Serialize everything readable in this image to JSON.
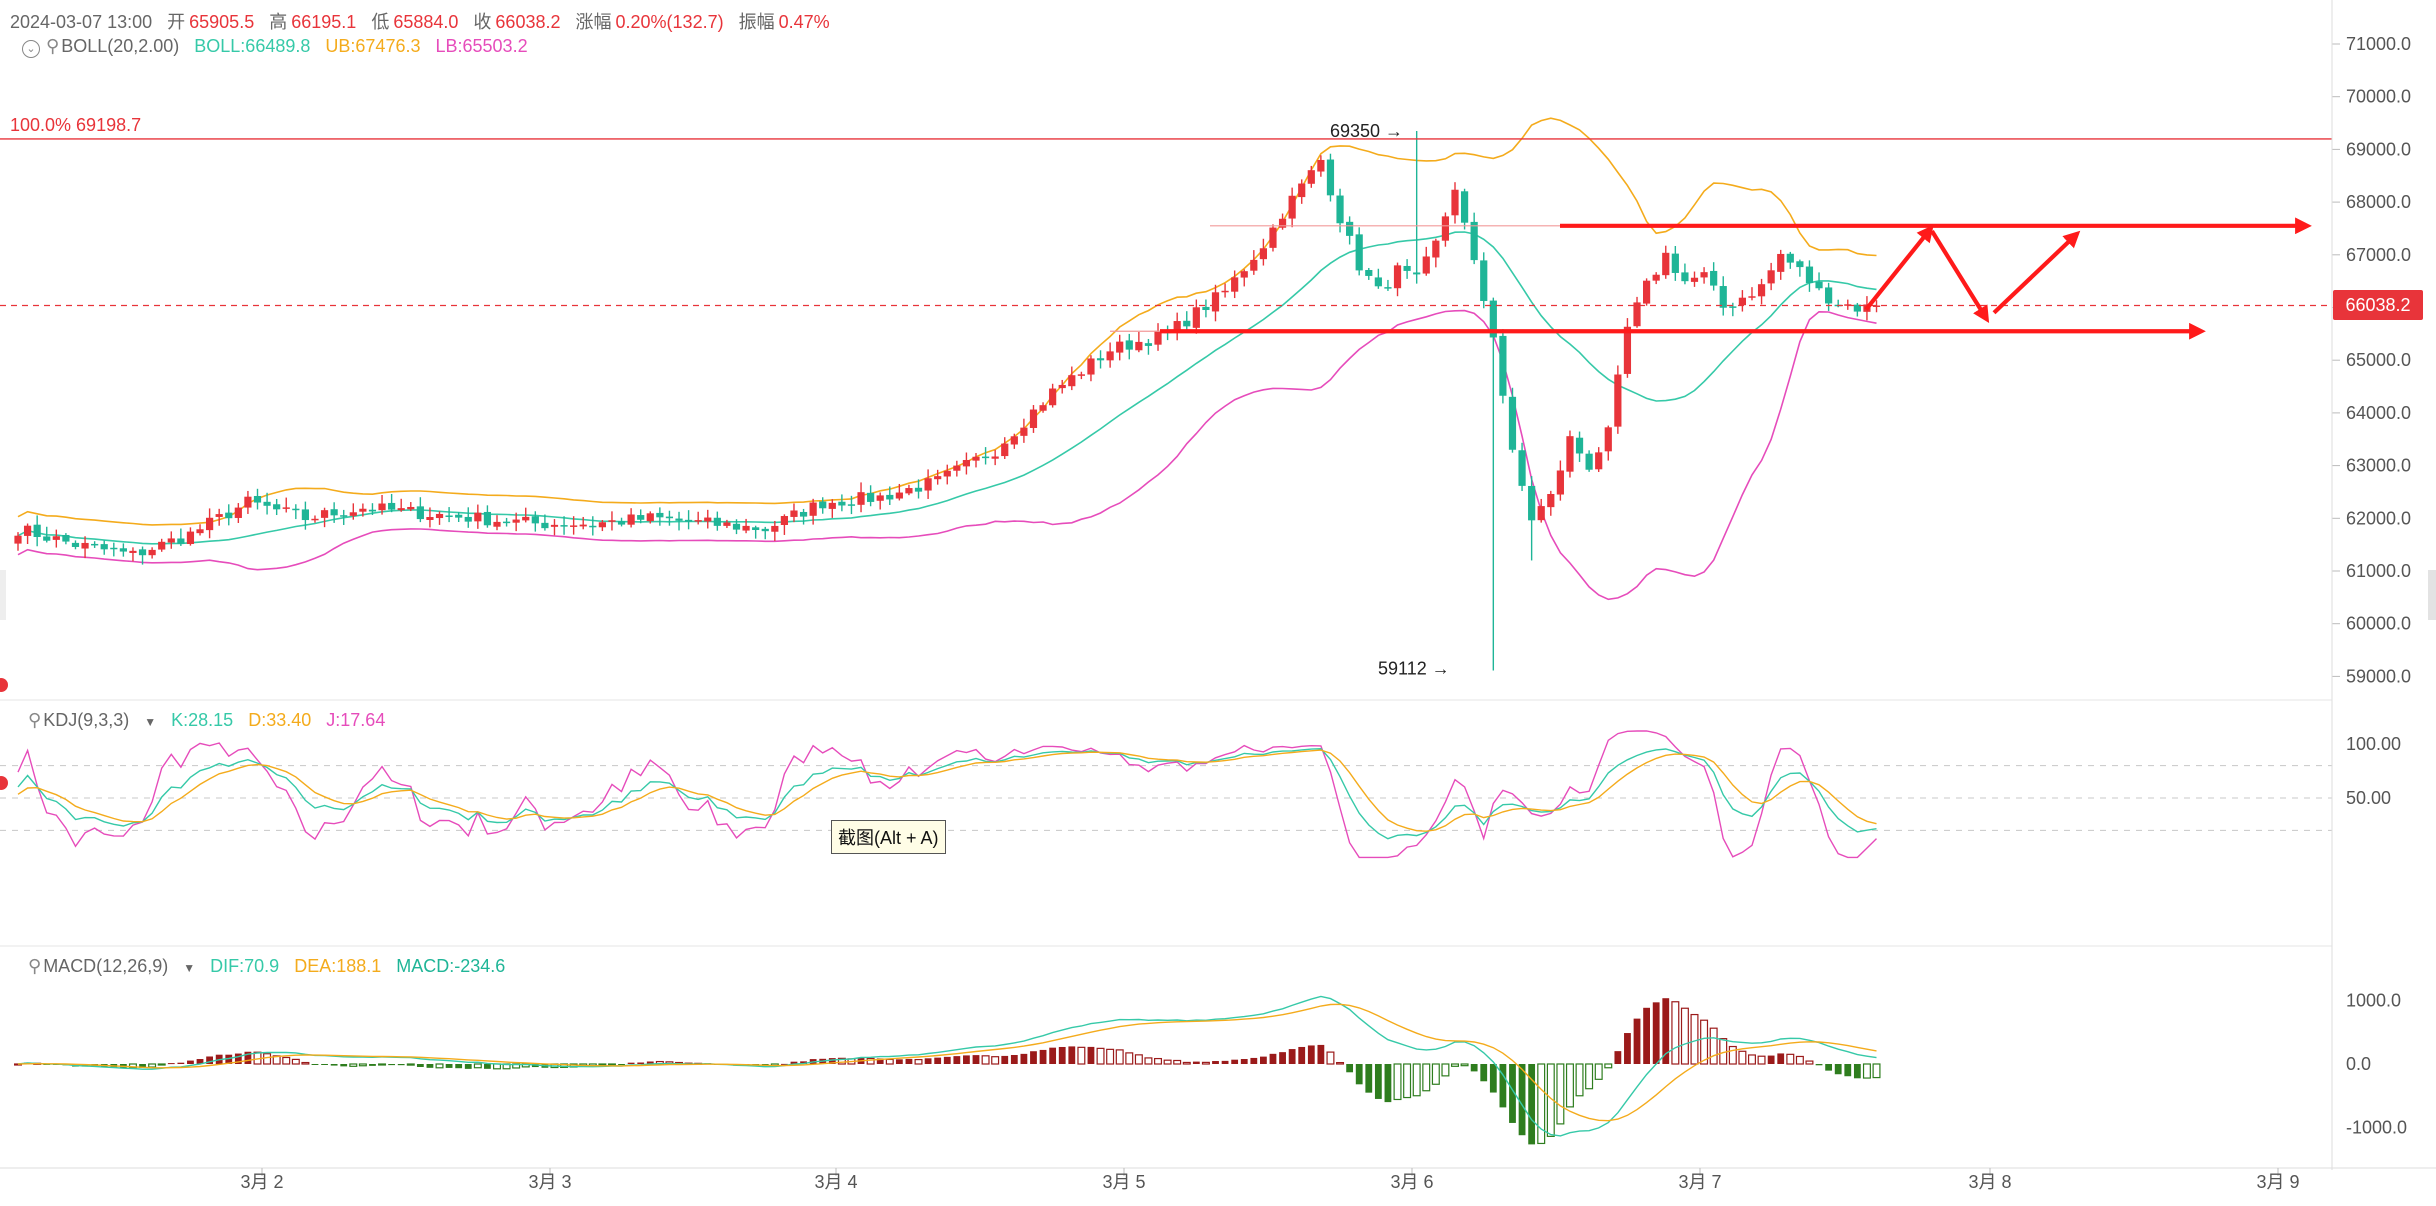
{
  "header": {
    "datetime": "2024-03-07 13:00",
    "open_label": "开",
    "open": "65905.5",
    "high_label": "高",
    "high": "66195.1",
    "low_label": "低",
    "low": "65884.0",
    "close_label": "收",
    "close": "66038.2",
    "change_label": "涨幅",
    "change": "0.20%(132.7)",
    "amp_label": "振幅",
    "amp": "0.47%"
  },
  "boll": {
    "label": "BOLL(20,2.00)",
    "mid": "BOLL:66489.8",
    "ub": "UB:67476.3",
    "lb": "LB:65503.2"
  },
  "kdj": {
    "label": "KDJ(9,3,3)",
    "k": "K:28.15",
    "d": "D:33.40",
    "j": "J:17.64"
  },
  "macd": {
    "label": "MACD(12,26,9)",
    "dif": "DIF:70.9",
    "dea": "DEA:188.1",
    "hist": "MACD:-234.6"
  },
  "fib_label": "100.0% 69198.7",
  "high_marker": "69350",
  "low_marker": "59112",
  "current_price": "66038.2",
  "tooltip": "截图(Alt + A)",
  "colors": {
    "up": "#e8343a",
    "down": "#1fb597",
    "mid": "#36c9a8",
    "ub": "#f4ab1c",
    "lb": "#e64cbb",
    "k": "#36c9a8",
    "d": "#f4ab1c",
    "j": "#e64cbb",
    "hist_pos": "#9b1a1a",
    "hist_neg": "#2e7d1e",
    "annotation": "#ff1a1a"
  },
  "chart_data": {
    "type": "candlestick",
    "price_axis": {
      "ticks": [
        59000,
        60000,
        61000,
        62000,
        63000,
        64000,
        65000,
        66000,
        67000,
        68000,
        69000,
        70000,
        71000
      ]
    },
    "kdj_axis": {
      "ticks": [
        50,
        100
      ]
    },
    "macd_axis": {
      "ticks": [
        -1000,
        0,
        1000
      ]
    },
    "x_axis": {
      "labels": [
        "3月 2",
        "3月 3",
        "3月 4",
        "3月 5",
        "3月 6",
        "3月 7",
        "3月 8",
        "3月 9"
      ]
    },
    "fib_level": 69198.7,
    "annotated_high": 69350,
    "annotated_low": 59112,
    "last_close": 66038.2,
    "resistance": 67550,
    "support": 65550,
    "close_anchors": [
      [
        0,
        61800
      ],
      [
        6,
        61500
      ],
      [
        12,
        61300
      ],
      [
        18,
        61700
      ],
      [
        24,
        62300
      ],
      [
        30,
        62000
      ],
      [
        36,
        62200
      ],
      [
        42,
        62100
      ],
      [
        48,
        62000
      ],
      [
        54,
        61900
      ],
      [
        60,
        61900
      ],
      [
        66,
        62000
      ],
      [
        72,
        61900
      ],
      [
        78,
        61800
      ],
      [
        84,
        62300
      ],
      [
        90,
        62400
      ],
      [
        96,
        62700
      ],
      [
        102,
        63300
      ],
      [
        108,
        64400
      ],
      [
        114,
        65200
      ],
      [
        120,
        65500
      ],
      [
        126,
        66300
      ],
      [
        130,
        67200
      ],
      [
        132,
        67800
      ],
      [
        134,
        68300
      ],
      [
        136,
        68800
      ],
      [
        138,
        67700
      ],
      [
        140,
        66800
      ],
      [
        142,
        66300
      ],
      [
        144,
        66700
      ],
      [
        146,
        66500
      ],
      [
        148,
        67200
      ],
      [
        150,
        68300
      ],
      [
        152,
        66800
      ],
      [
        154,
        65500
      ],
      [
        156,
        63200
      ],
      [
        158,
        62000
      ],
      [
        160,
        62400
      ],
      [
        162,
        63500
      ],
      [
        164,
        63000
      ],
      [
        166,
        63600
      ],
      [
        168,
        65600
      ],
      [
        170,
        66400
      ],
      [
        172,
        67000
      ],
      [
        174,
        66500
      ],
      [
        176,
        66600
      ],
      [
        178,
        66000
      ],
      [
        180,
        66200
      ],
      [
        182,
        66400
      ],
      [
        184,
        67000
      ],
      [
        186,
        66700
      ],
      [
        188,
        66300
      ],
      [
        190,
        66100
      ],
      [
        192,
        66000
      ],
      [
        194,
        66000
      ]
    ]
  }
}
